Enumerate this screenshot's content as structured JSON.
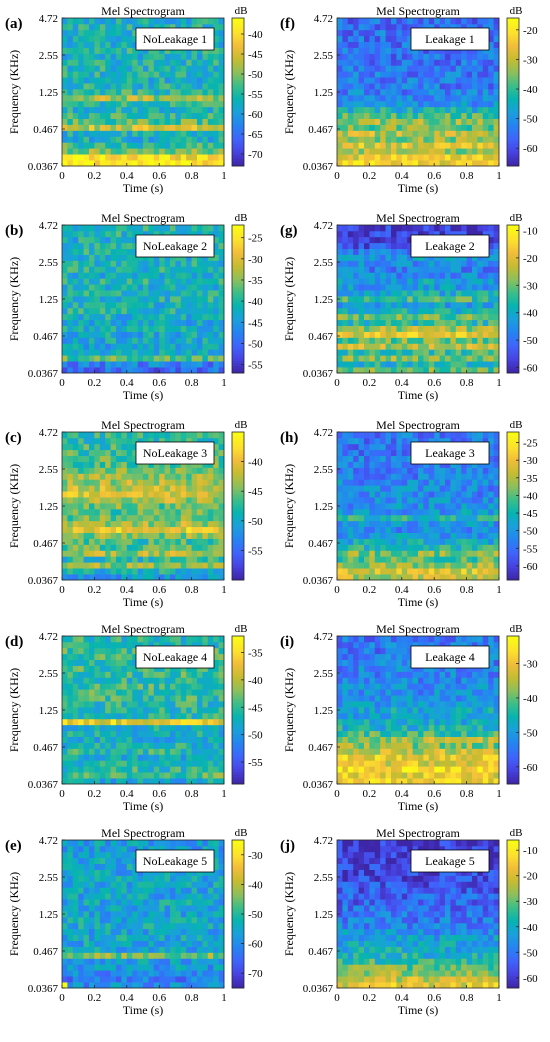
{
  "figure": {
    "colormap": "parula",
    "colormap_stops": [
      "#3e26a8",
      "#4744e3",
      "#3f64fc",
      "#2584f1",
      "#1aa0db",
      "#06b4b0",
      "#3cbe88",
      "#8dbf5c",
      "#c6bc31",
      "#f1bd3a",
      "#fde22c",
      "#f9fb15"
    ]
  },
  "chart_data": [
    {
      "type": "heatmap",
      "panel": "(a)",
      "title": "Mel Spectrogram",
      "label": "NoLeakage 1",
      "xlabel": "Time (s)",
      "ylabel": "Frequency (KHz)",
      "cbar_unit": "dB",
      "xlim": [
        0,
        1
      ],
      "xticks": [
        "0",
        "0.2",
        "0.4",
        "0.6",
        "0.8",
        "1"
      ],
      "yticks": [
        "0.0367",
        "0.467",
        "1.25",
        "2.55",
        "4.72"
      ],
      "clim": [
        -73,
        -36
      ],
      "cbar_ticks": [
        -40,
        -45,
        -50,
        -55,
        -60,
        -65,
        -70
      ],
      "profile": [
        -38,
        -40,
        -50,
        -54,
        -57,
        -57,
        -46,
        -52,
        -55,
        -56,
        -55,
        -48,
        -55,
        -56,
        -57,
        -56,
        -56,
        -56,
        -57,
        -56,
        -57,
        -57,
        -56,
        -56,
        -57
      ]
    },
    {
      "type": "heatmap",
      "panel": "(b)",
      "title": "Mel Spectrogram",
      "label": "NoLeakage 2",
      "xlabel": "Time (s)",
      "ylabel": "Frequency (KHz)",
      "cbar_unit": "dB",
      "xlim": [
        0,
        1
      ],
      "xticks": [
        "0",
        "0.2",
        "0.4",
        "0.6",
        "0.8",
        "1"
      ],
      "yticks": [
        "0.0367",
        "0.467",
        "1.25",
        "2.55",
        "4.72"
      ],
      "clim": [
        -57,
        -22
      ],
      "cbar_ticks": [
        -25,
        -30,
        -35,
        -40,
        -45,
        -50,
        -55
      ],
      "profile": [
        -50,
        -48,
        -37,
        -42,
        -44,
        -43,
        -43,
        -42,
        -43,
        -42,
        -41,
        -42,
        -41,
        -41,
        -42,
        -41,
        -42,
        -41,
        -41,
        -42,
        -41,
        -41,
        -42,
        -41,
        -41
      ]
    },
    {
      "type": "heatmap",
      "panel": "(c)",
      "title": "Mel Spectrogram",
      "label": "NoLeakage 3",
      "xlabel": "Time (s)",
      "ylabel": "Frequency (KHz)",
      "cbar_unit": "dB",
      "xlim": [
        0,
        1
      ],
      "xticks": [
        "0",
        "0.2",
        "0.4",
        "0.6",
        "0.8",
        "1"
      ],
      "yticks": [
        "0.0367",
        "0.467",
        "1.25",
        "2.55",
        "4.72"
      ],
      "clim": [
        -60,
        -35
      ],
      "cbar_ticks": [
        -40,
        -45,
        -50,
        -55
      ],
      "profile": [
        -52,
        -49,
        -44,
        -48,
        -43,
        -46,
        -47,
        -44,
        -40,
        -43,
        -45,
        -46,
        -45,
        -43,
        -41,
        -42,
        -43,
        -44,
        -45,
        -46,
        -46,
        -47,
        -47,
        -48,
        -48
      ]
    },
    {
      "type": "heatmap",
      "panel": "(d)",
      "title": "Mel Spectrogram",
      "label": "NoLeakage 4",
      "xlabel": "Time (s)",
      "ylabel": "Frequency (KHz)",
      "cbar_unit": "dB",
      "xlim": [
        0,
        1
      ],
      "xticks": [
        "0",
        "0.2",
        "0.4",
        "0.6",
        "0.8",
        "1"
      ],
      "yticks": [
        "0.0367",
        "0.467",
        "1.25",
        "2.55",
        "4.72"
      ],
      "clim": [
        -59,
        -32
      ],
      "cbar_ticks": [
        -35,
        -40,
        -45,
        -50,
        -55
      ],
      "profile": [
        -48,
        -44,
        -46,
        -47,
        -48,
        -46,
        -47,
        -48,
        -47,
        -47,
        -37,
        -46,
        -46,
        -46,
        -45,
        -45,
        -45,
        -46,
        -45,
        -45,
        -46,
        -45,
        -45,
        -46,
        -46
      ]
    },
    {
      "type": "heatmap",
      "panel": "(e)",
      "title": "Mel Spectrogram",
      "label": "NoLeakage 5",
      "xlabel": "Time (s)",
      "ylabel": "Frequency (KHz)",
      "cbar_unit": "dB",
      "xlim": [
        0,
        1
      ],
      "xticks": [
        "0",
        "0.2",
        "0.4",
        "0.6",
        "0.8",
        "1"
      ],
      "yticks": [
        "0.0367",
        "0.467",
        "1.25",
        "2.55",
        "4.72"
      ],
      "clim": [
        -75,
        -25
      ],
      "cbar_ticks": [
        -30,
        -40,
        -50,
        -60,
        -70
      ],
      "profile": [
        -60,
        -62,
        -61,
        -58,
        -57,
        -44,
        -56,
        -56,
        -55,
        -56,
        -55,
        -55,
        -56,
        -55,
        -55,
        -56,
        -56,
        -55,
        -56,
        -56,
        -56,
        -56,
        -57,
        -57,
        -57
      ]
    },
    {
      "type": "heatmap",
      "panel": "(f)",
      "title": "Mel Spectrogram",
      "label": "Leakage 1",
      "xlabel": "Time (s)",
      "ylabel": "Frequency (KHz)",
      "cbar_unit": "dB",
      "xlim": [
        0,
        1
      ],
      "xticks": [
        "0",
        "0.2",
        "0.4",
        "0.6",
        "0.8",
        "1"
      ],
      "yticks": [
        "0.0367",
        "0.467",
        "1.25",
        "2.55",
        "4.72"
      ],
      "clim": [
        -66,
        -16
      ],
      "cbar_ticks": [
        -20,
        -30,
        -40,
        -50,
        -60
      ],
      "profile": [
        -24,
        -26,
        -32,
        -28,
        -34,
        -30,
        -36,
        -33,
        -38,
        -44,
        -50,
        -52,
        -53,
        -54,
        -54,
        -54,
        -55,
        -55,
        -55,
        -55,
        -55,
        -55,
        -55,
        -56,
        -56
      ]
    },
    {
      "type": "heatmap",
      "panel": "(g)",
      "title": "Mel Spectrogram",
      "label": "Leakage 2",
      "xlabel": "Time (s)",
      "ylabel": "Frequency (KHz)",
      "cbar_unit": "dB",
      "xlim": [
        0,
        1
      ],
      "xticks": [
        "0",
        "0.2",
        "0.4",
        "0.6",
        "0.8",
        "1"
      ],
      "yticks": [
        "0.0367",
        "0.467",
        "1.25",
        "2.55",
        "4.72"
      ],
      "clim": [
        -62,
        -8
      ],
      "cbar_ticks": [
        -10,
        -20,
        -30,
        -40,
        -50,
        -60
      ],
      "profile": [
        -30,
        -38,
        -28,
        -34,
        -24,
        -30,
        -20,
        -26,
        -36,
        -30,
        -38,
        -42,
        -34,
        -40,
        -44,
        -42,
        -46,
        -48,
        -46,
        -44,
        -48,
        -54,
        -56,
        -58,
        -58
      ]
    },
    {
      "type": "heatmap",
      "panel": "(h)",
      "title": "Mel Spectrogram",
      "label": "Leakage 3",
      "xlabel": "Time (s)",
      "ylabel": "Frequency (KHz)",
      "cbar_unit": "dB",
      "xlim": [
        0,
        1
      ],
      "xticks": [
        "0",
        "0.2",
        "0.4",
        "0.6",
        "0.8",
        "1"
      ],
      "yticks": [
        "0.0367",
        "0.467",
        "1.25",
        "2.55",
        "4.72"
      ],
      "clim": [
        -64,
        -22
      ],
      "cbar_ticks": [
        -25,
        -30,
        -35,
        -40,
        -45,
        -50,
        -55,
        -60
      ],
      "profile": [
        -34,
        -32,
        -36,
        -40,
        -38,
        -44,
        -47,
        -50,
        -52,
        -51,
        -45,
        -50,
        -51,
        -51,
        -52,
        -52,
        -52,
        -53,
        -53,
        -53,
        -53,
        -54,
        -54,
        -54,
        -54
      ]
    },
    {
      "type": "heatmap",
      "panel": "(i)",
      "title": "Mel Spectrogram",
      "label": "Leakage 4",
      "xlabel": "Time (s)",
      "ylabel": "Frequency (KHz)",
      "cbar_unit": "dB",
      "xlim": [
        0,
        1
      ],
      "xticks": [
        "0",
        "0.2",
        "0.4",
        "0.6",
        "0.8",
        "1"
      ],
      "yticks": [
        "0.0367",
        "0.467",
        "1.25",
        "2.55",
        "4.72"
      ],
      "clim": [
        -65,
        -22
      ],
      "cbar_ticks": [
        -30,
        -40,
        -50,
        -60
      ],
      "profile": [
        -28,
        -30,
        -26,
        -32,
        -30,
        -34,
        -38,
        -36,
        -42,
        -46,
        -48,
        -50,
        -48,
        -50,
        -51,
        -52,
        -52,
        -53,
        -53,
        -53,
        -54,
        -54,
        -55,
        -55,
        -55
      ]
    },
    {
      "type": "heatmap",
      "panel": "(j)",
      "title": "Mel Spectrogram",
      "label": "Leakage 5",
      "xlabel": "Time (s)",
      "ylabel": "Frequency (KHz)",
      "cbar_unit": "dB",
      "xlim": [
        0,
        1
      ],
      "xticks": [
        "0",
        "0.2",
        "0.4",
        "0.6",
        "0.8",
        "1"
      ],
      "yticks": [
        "0.0367",
        "0.467",
        "1.25",
        "2.55",
        "4.72"
      ],
      "clim": [
        -64,
        -6
      ],
      "cbar_ticks": [
        -10,
        -20,
        -30,
        -40,
        -50,
        -60
      ],
      "profile": [
        -18,
        -22,
        -26,
        -30,
        -34,
        -38,
        -40,
        -42,
        -44,
        -46,
        -48,
        -50,
        -51,
        -52,
        -53,
        -54,
        -55,
        -56,
        -57,
        -58,
        -59,
        -60,
        -60,
        -61,
        -61
      ]
    }
  ]
}
